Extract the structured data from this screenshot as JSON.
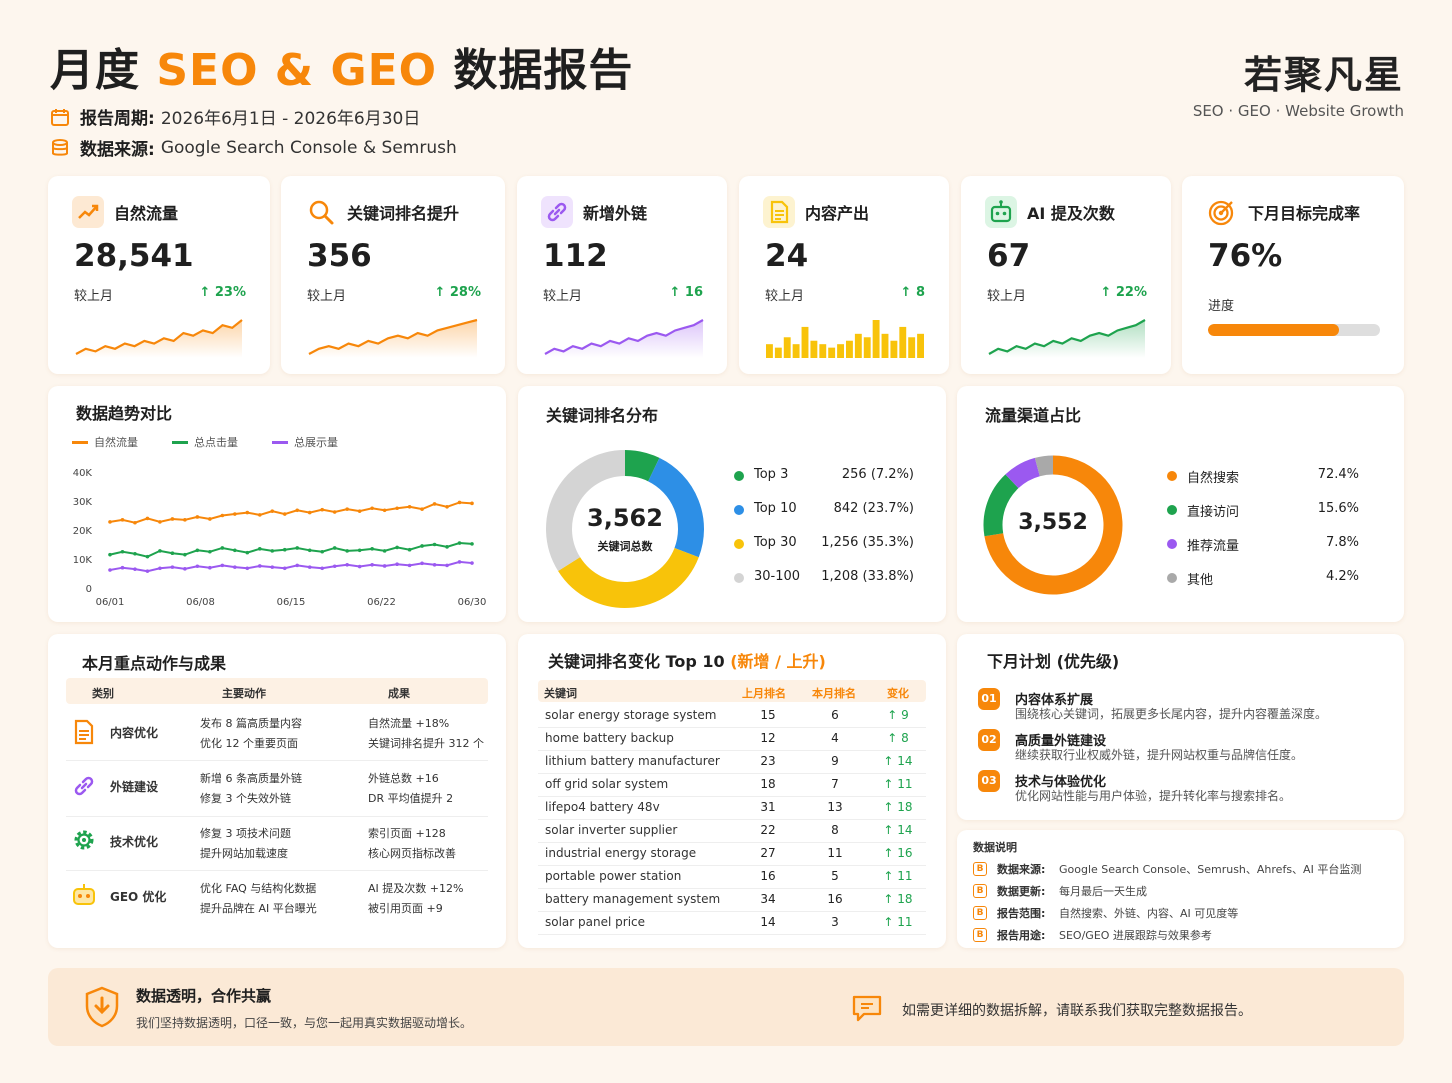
{
  "header": {
    "title_prefix": "月度",
    "title_accent": "SEO & GEO",
    "title_suffix": "数据报告",
    "period_label": "报告周期:",
    "period_value": "2026年6月1日 - 2026年6月30日",
    "source_label": "数据来源:",
    "source_value": "Google Search Console & Semrush",
    "brand": "若聚凡星",
    "brand_sub": "SEO · GEO · Website Growth"
  },
  "colors": {
    "accent": "#f7870a",
    "green": "#1ea34e",
    "purple": "#9b59f0",
    "blue": "#2d8fe6",
    "yellow": "#f8c30a",
    "gray": "#d4d4d4"
  },
  "kpis": [
    {
      "title": "自然流量",
      "icon": "trend-up-icon",
      "value": "28,541",
      "compare": "较上月",
      "delta": "↑ 23%",
      "spark_color": "#f7870a",
      "spark": [
        3,
        5,
        4,
        6,
        5,
        7,
        6,
        8,
        7,
        9,
        8,
        11,
        10,
        12,
        11,
        14,
        13,
        16
      ]
    },
    {
      "title": "关键词排名提升",
      "icon": "search-icon",
      "value": "356",
      "compare": "较上月",
      "delta": "↑ 28%",
      "spark_color": "#f7870a",
      "spark": [
        3,
        5,
        6,
        5,
        7,
        6,
        8,
        7,
        9,
        10,
        9,
        11,
        10,
        12,
        13,
        14,
        15,
        16
      ]
    },
    {
      "title": "新增外链",
      "icon": "link-icon",
      "value": "112",
      "compare": "较上月",
      "delta": "↑ 16",
      "spark_color": "#9b59f0",
      "spark": [
        3,
        5,
        4,
        6,
        5,
        7,
        6,
        8,
        7,
        9,
        8,
        10,
        11,
        10,
        12,
        13,
        14,
        16
      ]
    },
    {
      "title": "内容产出",
      "icon": "document-icon",
      "value": "24",
      "compare": "较上月",
      "delta": "↑ 8",
      "spark_color": "#f8c30a",
      "bars": [
        4,
        3,
        6,
        4,
        9,
        5,
        4,
        3,
        4,
        5,
        7,
        6,
        11,
        7,
        5,
        9,
        6,
        7
      ]
    },
    {
      "title": "AI 提及次数",
      "icon": "robot-icon",
      "value": "67",
      "compare": "较上月",
      "delta": "↑ 22%",
      "spark_color": "#1ea34e",
      "spark": [
        3,
        5,
        4,
        6,
        5,
        7,
        6,
        8,
        7,
        9,
        8,
        10,
        11,
        10,
        12,
        13,
        14,
        16
      ]
    },
    {
      "title": "下月目标完成率",
      "icon": "target-icon",
      "value": "76%",
      "progress_label": "进度",
      "progress": 0.76
    }
  ],
  "trend": {
    "title": "数据趋势对比",
    "legend": [
      "自然流量",
      "总点击量",
      "总展示量"
    ],
    "yticks": [
      "40K",
      "30K",
      "20K",
      "10K",
      "0"
    ],
    "xticks": [
      "06/01",
      "06/08",
      "06/15",
      "06/22",
      "06/30"
    ]
  },
  "chart_data": [
    {
      "type": "line",
      "ylim": [
        0,
        40000
      ],
      "x": [
        "06/01",
        "06/02",
        "06/03",
        "06/04",
        "06/05",
        "06/06",
        "06/07",
        "06/08",
        "06/09",
        "06/10",
        "06/11",
        "06/12",
        "06/13",
        "06/14",
        "06/15",
        "06/16",
        "06/17",
        "06/18",
        "06/19",
        "06/20",
        "06/21",
        "06/22",
        "06/23",
        "06/24",
        "06/25",
        "06/26",
        "06/27",
        "06/28",
        "06/29",
        "06/30"
      ],
      "series": [
        {
          "name": "自然流量",
          "color": "#f7870a",
          "values": [
            22800,
            23500,
            22500,
            24000,
            22800,
            23800,
            23500,
            24500,
            23800,
            25000,
            25500,
            26000,
            25200,
            26500,
            25500,
            26800,
            26000,
            27000,
            26200,
            27200,
            26500,
            27500,
            26800,
            27500,
            28000,
            27200,
            29000,
            28000,
            29500,
            29200
          ]
        },
        {
          "name": "总点击量",
          "color": "#1ea34e",
          "values": [
            11500,
            12500,
            11800,
            10800,
            12800,
            12000,
            11500,
            13000,
            12500,
            13800,
            13000,
            12200,
            13500,
            12800,
            13200,
            13800,
            13000,
            12500,
            13800,
            12800,
            13000,
            13500,
            12800,
            14000,
            13200,
            14500,
            15000,
            14200,
            15500,
            15200
          ]
        },
        {
          "name": "总展示量",
          "color": "#9b59f0",
          "values": [
            6200,
            7000,
            6500,
            5800,
            6800,
            7200,
            6600,
            7500,
            7000,
            7800,
            7200,
            6800,
            7600,
            7200,
            6800,
            7800,
            7200,
            6800,
            7500,
            8000,
            7400,
            8000,
            7600,
            8200,
            7800,
            8500,
            8000,
            7800,
            9000,
            8600
          ]
        }
      ]
    },
    {
      "type": "pie",
      "title": "关键词排名分布",
      "center_value": "3,562",
      "center_label": "关键词总数",
      "slices": [
        {
          "name": "Top 3",
          "value": 256,
          "label": "256 (7.2%)",
          "color": "#1ea34e"
        },
        {
          "name": "Top 10",
          "value": 842,
          "label": "842 (23.7%)",
          "color": "#2d8fe6"
        },
        {
          "name": "Top 30",
          "value": 1256,
          "label": "1,256 (35.3%)",
          "color": "#f8c30a"
        },
        {
          "name": "30-100",
          "value": 1208,
          "label": "1,208 (33.8%)",
          "color": "#d4d4d4"
        }
      ]
    },
    {
      "type": "pie",
      "title": "流量渠道占比",
      "center_value": "3,552",
      "slices": [
        {
          "name": "自然搜索",
          "value": 72.4,
          "label": "72.4%",
          "color": "#f7870a"
        },
        {
          "name": "直接访问",
          "value": 15.6,
          "label": "15.6%",
          "color": "#1ea34e"
        },
        {
          "name": "推荐流量",
          "value": 7.8,
          "label": "7.8%",
          "color": "#9b59f0"
        },
        {
          "name": "其他",
          "value": 4.2,
          "label": "4.2%",
          "color": "#a9a9a9"
        }
      ]
    }
  ],
  "actions": {
    "title": "本月重点动作与成果",
    "headers": [
      "类别",
      "主要动作",
      "成果"
    ],
    "rows": [
      {
        "icon": "document-icon",
        "category": "内容优化",
        "action1": "发布 8 篇高质量内容",
        "action2": "优化 12 个重要页面",
        "result1": "自然流量 +18%",
        "result2": "关键词排名提升 312 个"
      },
      {
        "icon": "link-icon",
        "category": "外链建设",
        "action1": "新增 6 条高质量外链",
        "action2": "修复 3 个失效外链",
        "result1": "外链总数 +16",
        "result2": "DR 平均值提升 2"
      },
      {
        "icon": "gear-icon",
        "category": "技术优化",
        "action1": "修复 3 项技术问题",
        "action2": "提升网站加载速度",
        "result1": "索引页面 +128",
        "result2": "核心网页指标改善"
      },
      {
        "icon": "robot-icon",
        "category": "GEO 优化",
        "action1": "优化 FAQ 与结构化数据",
        "action2": "提升品牌在 AI 平台曝光",
        "result1": "AI 提及次数 +12%",
        "result2": "被引用页面 +9"
      }
    ]
  },
  "rankings": {
    "title": "关键词排名变化 Top 10",
    "title_accent": "(新增 / 上升)",
    "headers": [
      "关键词",
      "上月排名",
      "本月排名",
      "变化"
    ],
    "rows": [
      {
        "keyword": "solar energy storage system",
        "last": "15",
        "now": "6",
        "change": "↑ 9"
      },
      {
        "keyword": "home battery backup",
        "last": "12",
        "now": "4",
        "change": "↑ 8"
      },
      {
        "keyword": "lithium battery manufacturer",
        "last": "23",
        "now": "9",
        "change": "↑ 14"
      },
      {
        "keyword": "off grid solar system",
        "last": "18",
        "now": "7",
        "change": "↑ 11"
      },
      {
        "keyword": "lifepo4 battery 48v",
        "last": "31",
        "now": "13",
        "change": "↑ 18"
      },
      {
        "keyword": "solar inverter supplier",
        "last": "22",
        "now": "8",
        "change": "↑ 14"
      },
      {
        "keyword": "industrial energy storage",
        "last": "27",
        "now": "11",
        "change": "↑ 16"
      },
      {
        "keyword": "portable power station",
        "last": "16",
        "now": "5",
        "change": "↑ 11"
      },
      {
        "keyword": "battery management system",
        "last": "34",
        "now": "16",
        "change": "↑ 18"
      },
      {
        "keyword": "solar panel price",
        "last": "14",
        "now": "3",
        "change": "↑ 11"
      }
    ]
  },
  "plan": {
    "title": "下月计划 (优先级)",
    "items": [
      {
        "num": "01",
        "title": "内容体系扩展",
        "desc": "围绕核心关键词，拓展更多长尾内容，提升内容覆盖深度。"
      },
      {
        "num": "02",
        "title": "高质量外链建设",
        "desc": "继续获取行业权威外链，提升网站权重与品牌信任度。"
      },
      {
        "num": "03",
        "title": "技术与体验优化",
        "desc": "优化网站性能与用户体验，提升转化率与搜索排名。"
      }
    ]
  },
  "notes": {
    "title": "数据说明",
    "items": [
      {
        "key": "数据来源:",
        "value": "Google Search Console、Semrush、Ahrefs、AI 平台监测"
      },
      {
        "key": "数据更新:",
        "value": "每月最后一天生成"
      },
      {
        "key": "报告范围:",
        "value": "自然搜索、外链、内容、AI 可见度等"
      },
      {
        "key": "报告用途:",
        "value": "SEO/GEO 进展跟踪与效果参考"
      }
    ]
  },
  "footer": {
    "title": "数据透明，合作共赢",
    "subtitle": "我们坚持数据透明，口径一致，与您一起用真实数据驱动增长。",
    "contact": "如需更详细的数据拆解，请联系我们获取完整数据报告。"
  }
}
